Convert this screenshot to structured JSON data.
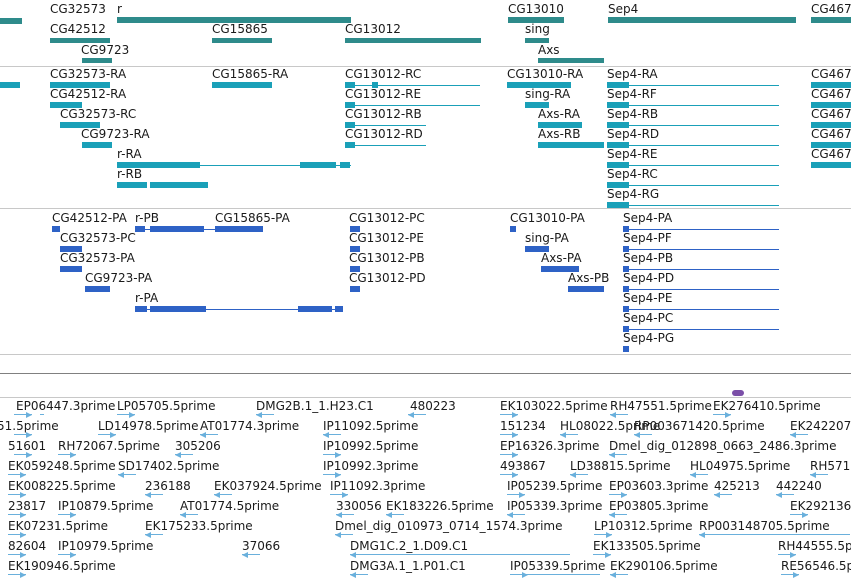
{
  "colors": {
    "gene": "#2e8b8b",
    "transcript": "#1aa0b8",
    "protein": "#2e62c6",
    "est": "#6ab0dc",
    "divider": "#c8c8c8",
    "ruler": "#808080",
    "marker": "#7b4fa8"
  },
  "tracks": {
    "genes": [
      {
        "label": "CG32573"
      },
      {
        "label": "r"
      },
      {
        "label": "CG13010"
      },
      {
        "label": "Sep4"
      },
      {
        "label": "CG467"
      },
      {
        "label": "CG42512"
      },
      {
        "label": "CG15865"
      },
      {
        "label": "CG13012"
      },
      {
        "label": "sing"
      },
      {
        "label": "CG9723"
      },
      {
        "label": "Axs"
      }
    ],
    "transcripts": [
      {
        "label": "CG32573-RA"
      },
      {
        "label": "CG15865-RA"
      },
      {
        "label": "CG13012-RC"
      },
      {
        "label": "CG13010-RA"
      },
      {
        "label": "Sep4-RA"
      },
      {
        "label": "CG467"
      },
      {
        "label": "CG42512-RA"
      },
      {
        "label": "CG13012-RE"
      },
      {
        "label": "sing-RA"
      },
      {
        "label": "Sep4-RF"
      },
      {
        "label": "CG467"
      },
      {
        "label": "CG32573-RC"
      },
      {
        "label": "CG13012-RB"
      },
      {
        "label": "Axs-RA"
      },
      {
        "label": "Sep4-RB"
      },
      {
        "label": "CG467"
      },
      {
        "label": "CG9723-RA"
      },
      {
        "label": "CG13012-RD"
      },
      {
        "label": "Axs-RB"
      },
      {
        "label": "Sep4-RD"
      },
      {
        "label": "CG467"
      },
      {
        "label": "r-RA"
      },
      {
        "label": "Sep4-RE"
      },
      {
        "label": "CG467"
      },
      {
        "label": "r-RB"
      },
      {
        "label": "Sep4-RC"
      },
      {
        "label": "Sep4-RG"
      }
    ],
    "proteins": [
      {
        "label": "CG42512-PA"
      },
      {
        "label": "r-PB"
      },
      {
        "label": "CG15865-PA"
      },
      {
        "label": "CG13012-PC"
      },
      {
        "label": "CG13010-PA"
      },
      {
        "label": "Sep4-PA"
      },
      {
        "label": "CG32573-PC"
      },
      {
        "label": "CG13012-PE"
      },
      {
        "label": "sing-PA"
      },
      {
        "label": "Sep4-PF"
      },
      {
        "label": "CG32573-PA"
      },
      {
        "label": "CG13012-PB"
      },
      {
        "label": "Axs-PA"
      },
      {
        "label": "Sep4-PB"
      },
      {
        "label": "CG9723-PA"
      },
      {
        "label": "CG13012-PD"
      },
      {
        "label": "Axs-PB"
      },
      {
        "label": "Sep4-PD"
      },
      {
        "label": "r-PA"
      },
      {
        "label": "Sep4-PE"
      },
      {
        "label": "Sep4-PC"
      },
      {
        "label": "Sep4-PG"
      }
    ],
    "ests": [
      {
        "label": "EP06447.3prime"
      },
      {
        "label": "LP05705.5prime"
      },
      {
        "label": "DMG2B.1_1.H23.C1"
      },
      {
        "label": "480223"
      },
      {
        "label": "EK103022.5prime"
      },
      {
        "label": "RH47551.5prime"
      },
      {
        "label": "EK276410.5prime"
      },
      {
        "label": "51.5prime"
      },
      {
        "label": "LD14978.5prime"
      },
      {
        "label": "AT01774.3prime"
      },
      {
        "label": "IP11092.5prime"
      },
      {
        "label": "151234"
      },
      {
        "label": "HL08022.5prime"
      },
      {
        "label": "RP003671420.5prime"
      },
      {
        "label": "EK242207"
      },
      {
        "label": "51601"
      },
      {
        "label": "RH72067.5prime"
      },
      {
        "label": "305206"
      },
      {
        "label": "IP10992.5prime"
      },
      {
        "label": "EP16326.3prime"
      },
      {
        "label": "Dmel_dig_012898_0663_2486.3prime"
      },
      {
        "label": "EK059248.5prime"
      },
      {
        "label": "SD17402.5prime"
      },
      {
        "label": "IP10992.3prime"
      },
      {
        "label": "493867"
      },
      {
        "label": "LD38815.5prime"
      },
      {
        "label": "HL04975.5prime"
      },
      {
        "label": "RH571"
      },
      {
        "label": "EK008225.5prime"
      },
      {
        "label": "236188"
      },
      {
        "label": "EK037924.5prime"
      },
      {
        "label": "IP11092.3prime"
      },
      {
        "label": "IP05239.5prime"
      },
      {
        "label": "EP03603.3prime"
      },
      {
        "label": "425213"
      },
      {
        "label": "442240"
      },
      {
        "label": "23817"
      },
      {
        "label": "IP10879.5prime"
      },
      {
        "label": "AT01774.5prime"
      },
      {
        "label": "330056"
      },
      {
        "label": "EK183226.5prime"
      },
      {
        "label": "IP05339.3prime"
      },
      {
        "label": "EP03805.3prime"
      },
      {
        "label": "EK292136.5"
      },
      {
        "label": "EK07231.5prime"
      },
      {
        "label": "EK175233.5prime"
      },
      {
        "label": "Dmel_dig_010973_0714_1574.3prime"
      },
      {
        "label": "LP10312.5prime"
      },
      {
        "label": "RP003148705.5prime"
      },
      {
        "label": "82604"
      },
      {
        "label": "IP10979.5prime"
      },
      {
        "label": "37066"
      },
      {
        "label": "DMG1C.2_1.D09.C1"
      },
      {
        "label": "EK133505.5prime"
      },
      {
        "label": "RH44555.5p"
      },
      {
        "label": "EK190946.5prime"
      },
      {
        "label": "DMG3A.1_1.P01.C1"
      },
      {
        "label": "IP05339.5prime"
      },
      {
        "label": "EK290106.5prime"
      },
      {
        "label": "RE56546.5p"
      }
    ]
  }
}
